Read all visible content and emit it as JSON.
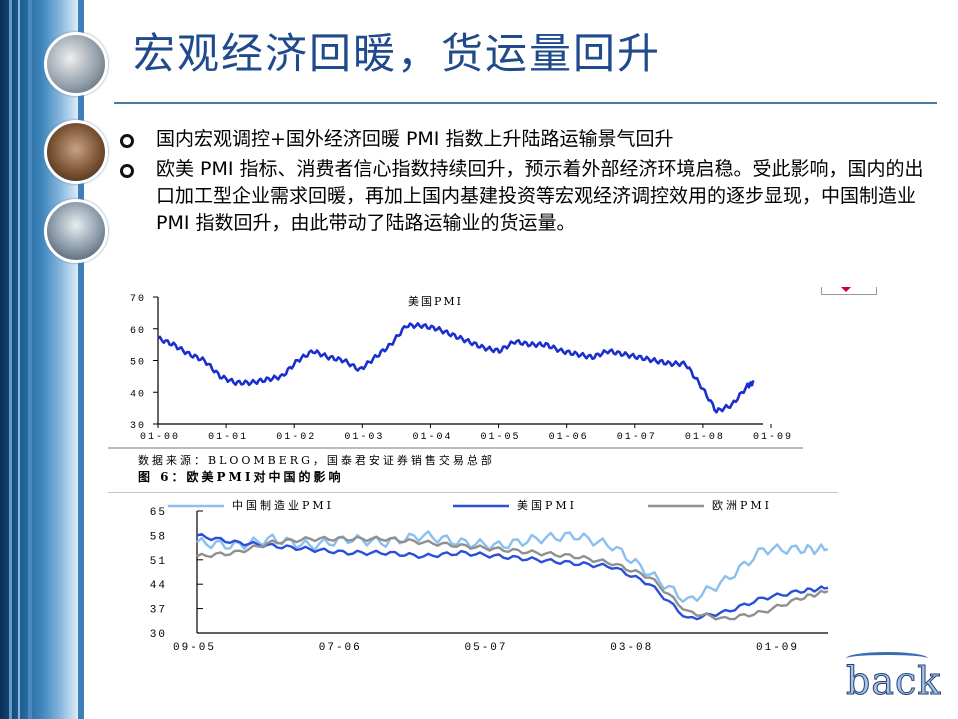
{
  "slide": {
    "title": "宏观经济回暖，货运量回升",
    "bullets": [
      "国内宏观调控+国外经济回暖 PMI 指数上升陆路运输景气回升",
      "欧美 PMI 指标、消费者信心指数持续回升，预示着外部经济环境启稳。受此影响，国内的出口加工型企业需求回暖，再加上国内基建投资等宏观经济调控效用的逐步显现，中国制造业PMI 指数回升，由此带动了陆路运输业的货运量。"
    ],
    "back_label": "back"
  },
  "chart_data": [
    {
      "type": "line",
      "title": "美国PMI",
      "ylim": [
        30,
        70
      ],
      "yticks": [
        "30",
        "40",
        "50",
        "60",
        "70"
      ],
      "xticks": [
        "01-00",
        "01-01",
        "01-02",
        "01-03",
        "01-04",
        "01-05",
        "01-06",
        "01-07",
        "01-08",
        "01-09"
      ],
      "x_range": [
        2000.0,
        2009.75
      ],
      "series": [
        {
          "name": "美国PMI",
          "color": "#1a2fd0",
          "x": [
            2000.0,
            2000.25,
            2000.5,
            2000.75,
            2001.0,
            2001.25,
            2001.5,
            2001.75,
            2002.0,
            2002.25,
            2002.5,
            2002.75,
            2003.0,
            2003.25,
            2003.5,
            2003.75,
            2004.0,
            2004.25,
            2004.5,
            2004.75,
            2005.0,
            2005.25,
            2005.5,
            2005.75,
            2006.0,
            2006.25,
            2006.5,
            2006.75,
            2007.0,
            2007.25,
            2007.5,
            2007.75,
            2008.0,
            2008.25,
            2008.5,
            2008.75,
            2009.0,
            2009.25,
            2009.5,
            2009.6
          ],
          "y": [
            57,
            55,
            52,
            50,
            45,
            43,
            43,
            44,
            45,
            50,
            53,
            51,
            50,
            47,
            51,
            55,
            61,
            61,
            60,
            58,
            56,
            54,
            53,
            56,
            55,
            55,
            53,
            52,
            51,
            53,
            52,
            51,
            50,
            49,
            49,
            42,
            34,
            36,
            42,
            43
          ]
        }
      ],
      "source": "数据来源：BLOOMBERG，国泰君安证券销售交易总部",
      "caption": "图 6：欧美PMI对中国的影响"
    },
    {
      "type": "line",
      "ylim": [
        30,
        65
      ],
      "yticks": [
        "30",
        "37",
        "44",
        "51",
        "58",
        "65"
      ],
      "xticks": [
        "09-05",
        "07-06",
        "05-07",
        "03-08",
        "01-09"
      ],
      "x_range": [
        2005.67,
        2009.85
      ],
      "series": [
        {
          "name": "中国制造业PMI",
          "color": "#8bbfee",
          "x": [
            2005.67,
            2005.92,
            2006.17,
            2006.42,
            2006.67,
            2006.92,
            2007.17,
            2007.42,
            2007.67,
            2007.92,
            2008.17,
            2008.42,
            2008.67,
            2008.92,
            2009.17,
            2009.42,
            2009.67,
            2009.85
          ],
          "y": [
            56,
            55,
            57,
            55,
            57,
            56,
            58,
            56,
            55,
            57,
            58,
            55,
            47,
            39,
            45,
            54,
            54,
            54
          ]
        },
        {
          "name": "美国PMI",
          "color": "#2a4fd8",
          "x": [
            2005.67,
            2005.92,
            2006.17,
            2006.42,
            2006.67,
            2006.92,
            2007.17,
            2007.42,
            2007.67,
            2007.92,
            2008.17,
            2008.42,
            2008.67,
            2008.92,
            2009.17,
            2009.42,
            2009.67,
            2009.85
          ],
          "y": [
            58,
            56,
            55,
            54,
            53,
            53,
            52,
            53,
            52,
            51,
            50,
            49,
            44,
            34,
            36,
            40,
            42,
            43
          ]
        },
        {
          "name": "欧洲PMI",
          "color": "#909090",
          "x": [
            2005.67,
            2005.92,
            2006.17,
            2006.42,
            2006.67,
            2006.92,
            2007.17,
            2007.42,
            2007.67,
            2007.92,
            2008.17,
            2008.42,
            2008.67,
            2008.92,
            2009.17,
            2009.42,
            2009.67,
            2009.85
          ],
          "y": [
            52,
            53,
            56,
            57,
            57,
            57,
            56,
            55,
            54,
            53,
            52,
            50,
            46,
            36,
            34,
            36,
            40,
            42
          ]
        }
      ]
    }
  ]
}
